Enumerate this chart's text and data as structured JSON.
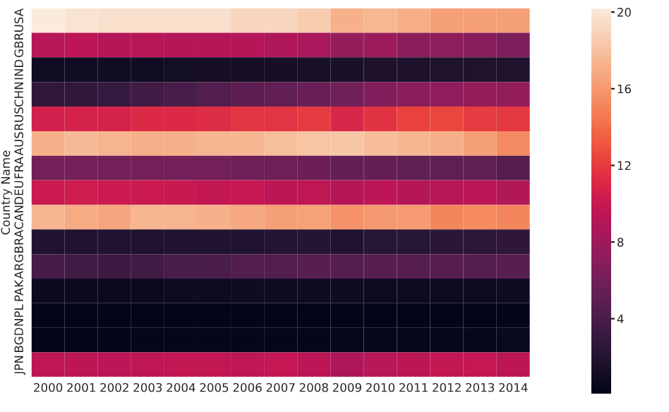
{
  "chart_data": {
    "type": "heatmap",
    "ylabel": "Country Name",
    "categories": [
      "2000",
      "2001",
      "2002",
      "2003",
      "2004",
      "2005",
      "2006",
      "2007",
      "2008",
      "2009",
      "2010",
      "2011",
      "2012",
      "2013",
      "2014"
    ],
    "y_categories": [
      "USA",
      "GBR",
      "IND",
      "CHN",
      "RUS",
      "AUS",
      "FRA",
      "DEU",
      "CAN",
      "BRA",
      "ARG",
      "PAK",
      "NPL",
      "BGD",
      "JPN"
    ],
    "cells": [
      [
        20.2,
        19.8,
        19.6,
        19.6,
        19.6,
        19.6,
        19.1,
        19.1,
        18.5,
        17.2,
        17.5,
        17.0,
        16.3,
        16.3,
        16.3
      ],
      [
        9.2,
        9.4,
        9.1,
        9.2,
        9.1,
        9.0,
        9.0,
        8.8,
        8.5,
        7.6,
        7.9,
        7.1,
        7.3,
        7.0,
        6.5
      ],
      [
        1.0,
        1.0,
        1.0,
        1.0,
        1.1,
        1.2,
        1.2,
        1.3,
        1.4,
        1.5,
        1.6,
        1.6,
        1.7,
        1.7,
        1.7
      ],
      [
        2.7,
        2.7,
        3.0,
        3.5,
        4.0,
        4.4,
        4.9,
        5.2,
        5.5,
        5.9,
        6.6,
        7.2,
        7.4,
        7.5,
        7.5
      ],
      [
        10.6,
        10.7,
        10.7,
        11.1,
        11.1,
        11.3,
        11.7,
        11.7,
        12.0,
        11.0,
        11.6,
        12.3,
        12.5,
        12.0,
        11.8
      ],
      [
        17.2,
        17.6,
        17.3,
        17.1,
        17.2,
        17.4,
        17.4,
        17.8,
        18.1,
        18.2,
        17.7,
        17.4,
        17.1,
        16.3,
        15.4
      ],
      [
        6.0,
        6.1,
        6.0,
        6.1,
        6.1,
        6.0,
        5.8,
        5.7,
        5.6,
        5.3,
        5.4,
        5.1,
        5.1,
        5.1,
        4.6
      ],
      [
        10.1,
        10.3,
        10.1,
        10.1,
        10.0,
        9.7,
        9.9,
        9.5,
        9.6,
        9.0,
        9.4,
        9.1,
        9.2,
        9.4,
        8.9
      ],
      [
        17.4,
        16.9,
        16.6,
        17.4,
        17.3,
        17.2,
        16.7,
        16.3,
        16.4,
        15.7,
        16.0,
        16.1,
        15.1,
        15.3,
        15.1
      ],
      [
        1.9,
        1.9,
        1.9,
        1.8,
        1.9,
        1.9,
        1.9,
        2.0,
        2.1,
        1.9,
        2.2,
        2.2,
        2.4,
        2.5,
        2.6
      ],
      [
        3.8,
        3.6,
        3.3,
        3.5,
        4.0,
        4.1,
        4.4,
        4.4,
        4.7,
        4.5,
        4.6,
        4.6,
        4.6,
        4.5,
        4.7
      ],
      [
        0.7,
        0.7,
        0.7,
        0.7,
        0.8,
        0.8,
        0.9,
        0.9,
        0.9,
        0.9,
        0.8,
        0.8,
        0.8,
        0.8,
        0.9
      ],
      [
        0.1,
        0.1,
        0.1,
        0.1,
        0.1,
        0.1,
        0.1,
        0.1,
        0.1,
        0.1,
        0.1,
        0.2,
        0.2,
        0.2,
        0.3
      ],
      [
        0.2,
        0.2,
        0.2,
        0.3,
        0.3,
        0.3,
        0.3,
        0.3,
        0.3,
        0.4,
        0.4,
        0.4,
        0.4,
        0.4,
        0.5
      ],
      [
        9.6,
        9.5,
        9.4,
        9.6,
        9.7,
        9.7,
        9.6,
        9.8,
        9.4,
        8.7,
        9.2,
        9.5,
        9.7,
        9.8,
        9.5
      ]
    ],
    "clim": [
      0.1,
      20.2
    ],
    "cticks": [
      4,
      8,
      12,
      16,
      20
    ]
  }
}
